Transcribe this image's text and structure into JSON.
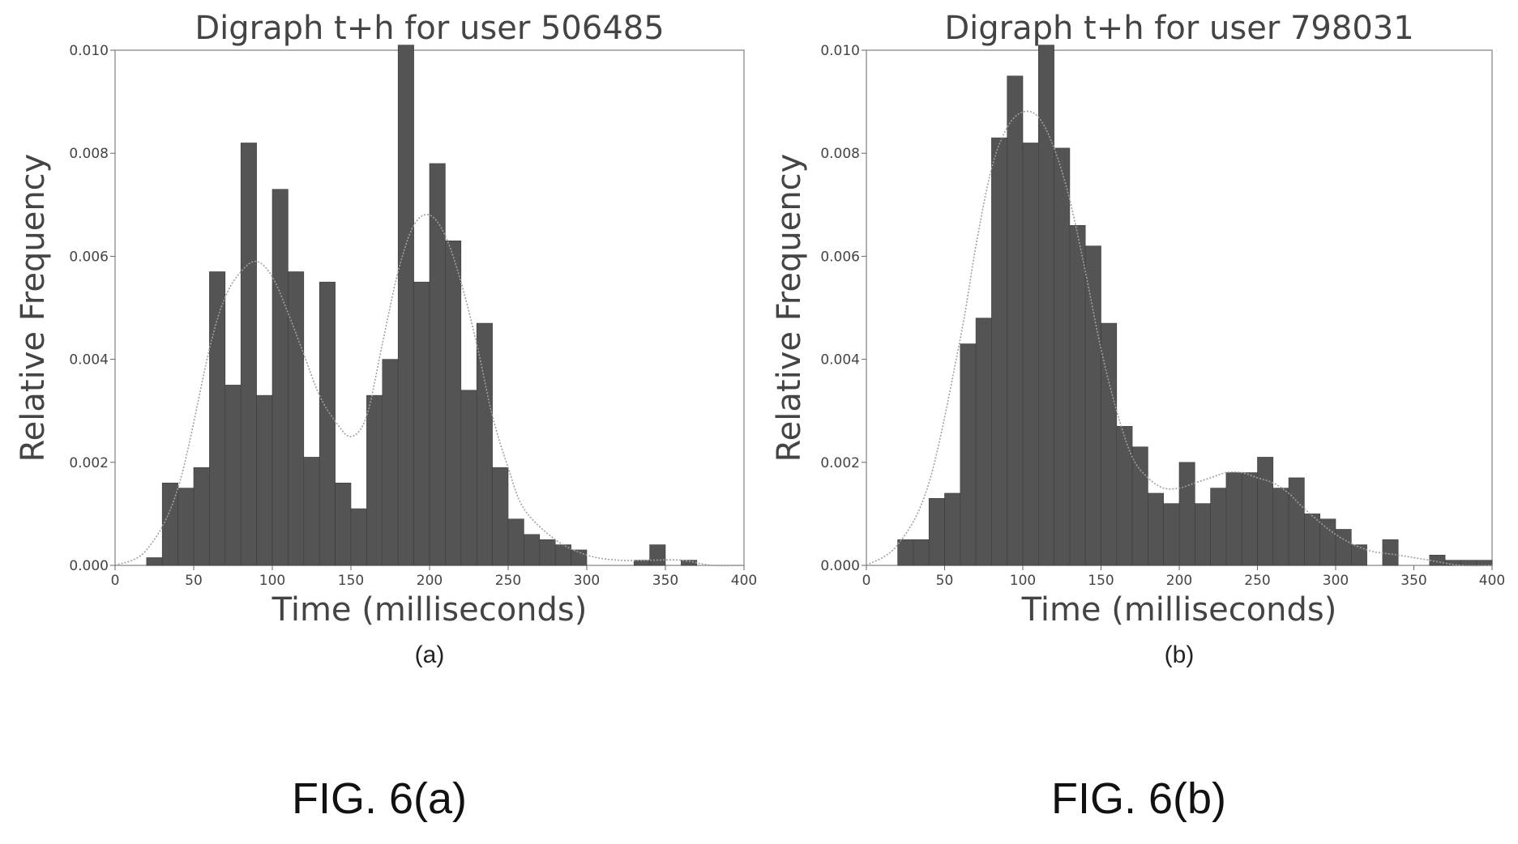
{
  "figure": {
    "captions": [
      "FIG. 6(a)",
      "FIG. 6(b)"
    ]
  },
  "chart_data": [
    {
      "type": "bar",
      "title": "Digraph t+h for user 506485",
      "xlabel": "Time (milliseconds)",
      "ylabel": "Relative Frequency",
      "subcaption": "(a)",
      "xlim": [
        0,
        400
      ],
      "ylim": [
        0,
        0.01
      ],
      "xticks": [
        0,
        50,
        100,
        150,
        200,
        250,
        300,
        350,
        400
      ],
      "xtick_labels": [
        "0",
        "50",
        "100",
        "150",
        "200",
        "250",
        "300",
        "350",
        "400"
      ],
      "yticks": [
        0,
        0.002,
        0.004,
        0.006,
        0.008,
        0.01
      ],
      "ytick_labels": [
        "0.000",
        "0.002",
        "0.004",
        "0.006",
        "0.008",
        "0.010"
      ],
      "bin_width": 10,
      "bins": [
        {
          "x0": 20,
          "x1": 30,
          "value": 0.00015
        },
        {
          "x0": 30,
          "x1": 40,
          "value": 0.0016
        },
        {
          "x0": 40,
          "x1": 50,
          "value": 0.0015
        },
        {
          "x0": 50,
          "x1": 60,
          "value": 0.0019
        },
        {
          "x0": 60,
          "x1": 70,
          "value": 0.0057
        },
        {
          "x0": 70,
          "x1": 80,
          "value": 0.0035
        },
        {
          "x0": 80,
          "x1": 90,
          "value": 0.0082
        },
        {
          "x0": 90,
          "x1": 100,
          "value": 0.0033
        },
        {
          "x0": 100,
          "x1": 110,
          "value": 0.0073
        },
        {
          "x0": 110,
          "x1": 120,
          "value": 0.0057
        },
        {
          "x0": 120,
          "x1": 130,
          "value": 0.0021
        },
        {
          "x0": 130,
          "x1": 140,
          "value": 0.0055
        },
        {
          "x0": 140,
          "x1": 150,
          "value": 0.0016
        },
        {
          "x0": 150,
          "x1": 160,
          "value": 0.0011
        },
        {
          "x0": 160,
          "x1": 170,
          "value": 0.0033
        },
        {
          "x0": 170,
          "x1": 180,
          "value": 0.004
        },
        {
          "x0": 180,
          "x1": 190,
          "value": 0.0101
        },
        {
          "x0": 190,
          "x1": 200,
          "value": 0.0055
        },
        {
          "x0": 200,
          "x1": 210,
          "value": 0.0078
        },
        {
          "x0": 210,
          "x1": 220,
          "value": 0.0063
        },
        {
          "x0": 220,
          "x1": 230,
          "value": 0.0034
        },
        {
          "x0": 230,
          "x1": 240,
          "value": 0.0047
        },
        {
          "x0": 240,
          "x1": 250,
          "value": 0.0019
        },
        {
          "x0": 250,
          "x1": 260,
          "value": 0.0009
        },
        {
          "x0": 260,
          "x1": 270,
          "value": 0.0006
        },
        {
          "x0": 270,
          "x1": 280,
          "value": 0.0005
        },
        {
          "x0": 280,
          "x1": 290,
          "value": 0.0004
        },
        {
          "x0": 290,
          "x1": 300,
          "value": 0.0003
        },
        {
          "x0": 330,
          "x1": 340,
          "value": 0.0001
        },
        {
          "x0": 340,
          "x1": 350,
          "value": 0.0004
        },
        {
          "x0": 360,
          "x1": 370,
          "value": 0.0001
        }
      ],
      "density_curve": {
        "x": [
          0,
          20,
          40,
          60,
          70,
          80,
          90,
          100,
          110,
          120,
          130,
          140,
          150,
          160,
          170,
          180,
          190,
          200,
          210,
          220,
          230,
          240,
          250,
          260,
          280,
          300,
          320,
          340,
          360,
          380,
          400
        ],
        "y": [
          0.0,
          0.0003,
          0.0015,
          0.0042,
          0.0052,
          0.0057,
          0.0059,
          0.0056,
          0.0049,
          0.0041,
          0.0033,
          0.0028,
          0.0025,
          0.0029,
          0.0043,
          0.0057,
          0.0066,
          0.0068,
          0.0064,
          0.0055,
          0.0043,
          0.0029,
          0.0019,
          0.0011,
          0.0005,
          0.0002,
          0.0001,
          0.0001,
          0.0001,
          0.0,
          0.0
        ]
      }
    },
    {
      "type": "bar",
      "title": "Digraph t+h for user 798031",
      "xlabel": "Time (milliseconds)",
      "ylabel": "Relative Frequency",
      "subcaption": "(b)",
      "xlim": [
        0,
        400
      ],
      "ylim": [
        0,
        0.01
      ],
      "xticks": [
        0,
        50,
        100,
        150,
        200,
        250,
        300,
        350,
        400
      ],
      "xtick_labels": [
        "0",
        "50",
        "100",
        "150",
        "200",
        "250",
        "300",
        "350",
        "400"
      ],
      "yticks": [
        0,
        0.002,
        0.004,
        0.006,
        0.008,
        0.01
      ],
      "ytick_labels": [
        "0.000",
        "0.002",
        "0.004",
        "0.006",
        "0.008",
        "0.010"
      ],
      "bin_width": 10,
      "bins": [
        {
          "x0": 20,
          "x1": 30,
          "value": 0.0005
        },
        {
          "x0": 30,
          "x1": 40,
          "value": 0.0005
        },
        {
          "x0": 40,
          "x1": 50,
          "value": 0.0013
        },
        {
          "x0": 50,
          "x1": 60,
          "value": 0.0014
        },
        {
          "x0": 60,
          "x1": 70,
          "value": 0.0043
        },
        {
          "x0": 70,
          "x1": 80,
          "value": 0.0048
        },
        {
          "x0": 80,
          "x1": 90,
          "value": 0.0083
        },
        {
          "x0": 90,
          "x1": 100,
          "value": 0.0095
        },
        {
          "x0": 100,
          "x1": 110,
          "value": 0.0082
        },
        {
          "x0": 110,
          "x1": 120,
          "value": 0.0101
        },
        {
          "x0": 120,
          "x1": 130,
          "value": 0.0081
        },
        {
          "x0": 130,
          "x1": 140,
          "value": 0.0066
        },
        {
          "x0": 140,
          "x1": 150,
          "value": 0.0062
        },
        {
          "x0": 150,
          "x1": 160,
          "value": 0.0047
        },
        {
          "x0": 160,
          "x1": 170,
          "value": 0.0027
        },
        {
          "x0": 170,
          "x1": 180,
          "value": 0.0023
        },
        {
          "x0": 180,
          "x1": 190,
          "value": 0.0014
        },
        {
          "x0": 190,
          "x1": 200,
          "value": 0.0012
        },
        {
          "x0": 200,
          "x1": 210,
          "value": 0.002
        },
        {
          "x0": 210,
          "x1": 220,
          "value": 0.0012
        },
        {
          "x0": 220,
          "x1": 230,
          "value": 0.0015
        },
        {
          "x0": 230,
          "x1": 240,
          "value": 0.0018
        },
        {
          "x0": 240,
          "x1": 250,
          "value": 0.0018
        },
        {
          "x0": 250,
          "x1": 260,
          "value": 0.0021
        },
        {
          "x0": 260,
          "x1": 270,
          "value": 0.0015
        },
        {
          "x0": 270,
          "x1": 280,
          "value": 0.0017
        },
        {
          "x0": 280,
          "x1": 290,
          "value": 0.001
        },
        {
          "x0": 290,
          "x1": 300,
          "value": 0.0009
        },
        {
          "x0": 300,
          "x1": 310,
          "value": 0.0007
        },
        {
          "x0": 310,
          "x1": 320,
          "value": 0.0004
        },
        {
          "x0": 320,
          "x1": 330,
          "value": 0.0
        },
        {
          "x0": 330,
          "x1": 340,
          "value": 0.0005
        },
        {
          "x0": 360,
          "x1": 370,
          "value": 0.0002
        },
        {
          "x0": 370,
          "x1": 380,
          "value": 0.0001
        },
        {
          "x0": 380,
          "x1": 390,
          "value": 0.0001
        },
        {
          "x0": 390,
          "x1": 400,
          "value": 0.0001
        }
      ],
      "density_curve": {
        "x": [
          0,
          20,
          40,
          60,
          70,
          80,
          90,
          100,
          110,
          120,
          130,
          140,
          150,
          160,
          170,
          180,
          190,
          200,
          210,
          220,
          230,
          240,
          250,
          260,
          270,
          280,
          300,
          320,
          340,
          360,
          380,
          400
        ],
        "y": [
          0.0,
          0.0004,
          0.0016,
          0.0044,
          0.0062,
          0.0077,
          0.0085,
          0.0088,
          0.0087,
          0.0081,
          0.0071,
          0.0057,
          0.0042,
          0.003,
          0.0021,
          0.0017,
          0.0015,
          0.0015,
          0.0016,
          0.0017,
          0.0018,
          0.0018,
          0.0017,
          0.0016,
          0.0014,
          0.0011,
          0.0006,
          0.0003,
          0.0002,
          0.0001,
          0.0,
          0.0
        ]
      }
    }
  ]
}
